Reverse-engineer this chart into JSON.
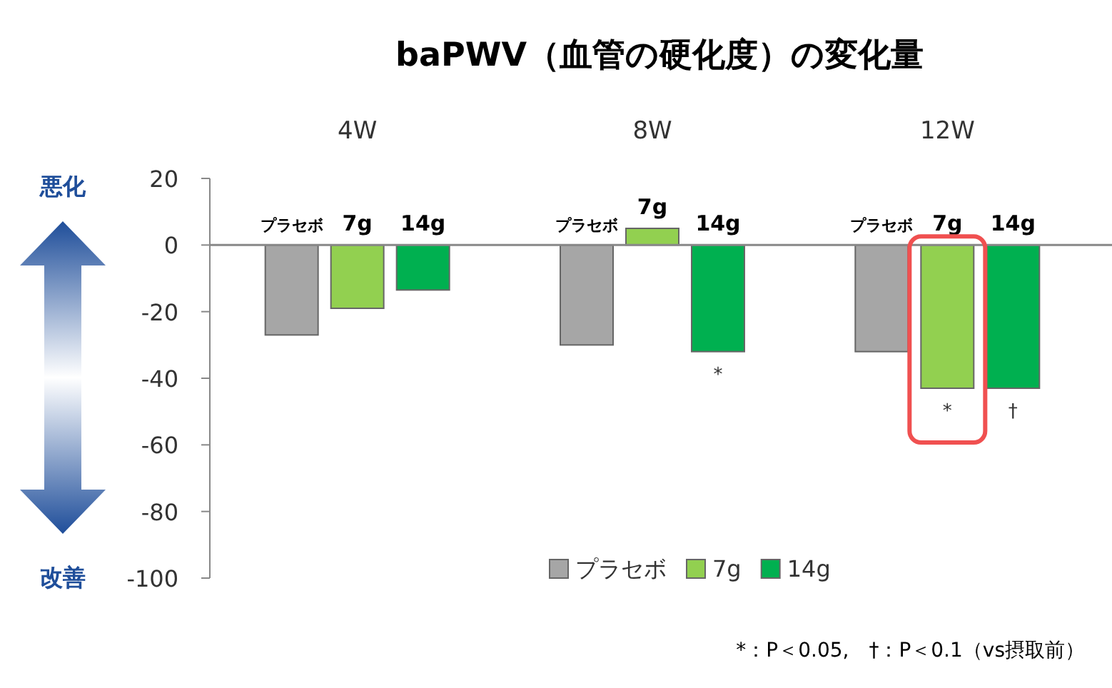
{
  "chart_data": {
    "type": "bar",
    "title": "baPWV（血管の硬化度）の変化量",
    "categories": [
      "4W",
      "8W",
      "12W"
    ],
    "series": [
      {
        "name": "プラセボ",
        "color": "#a6a6a6",
        "values": [
          -27,
          -30,
          -32
        ]
      },
      {
        "name": "7g",
        "color": "#92d050",
        "values": [
          -19,
          5,
          -43
        ],
        "value_labels": [
          null,
          null,
          "*"
        ]
      },
      {
        "name": "14g",
        "color": "#00b050",
        "values": [
          -13.5,
          -32,
          -43
        ],
        "value_labels": [
          null,
          "*",
          "†"
        ]
      }
    ],
    "ylim": [
      -100,
      20
    ],
    "yticks": [
      -100,
      -80,
      -60,
      -40,
      -20,
      0,
      20
    ],
    "legend": "bottom",
    "ref_lines": [
      {
        "axis": "y",
        "value": 0,
        "color": "#888888"
      }
    ],
    "annotations": [
      "悪化",
      "改善",
      "*：P＜0.05,　†：P＜0.1（vs摂取前）"
    ]
  }
}
